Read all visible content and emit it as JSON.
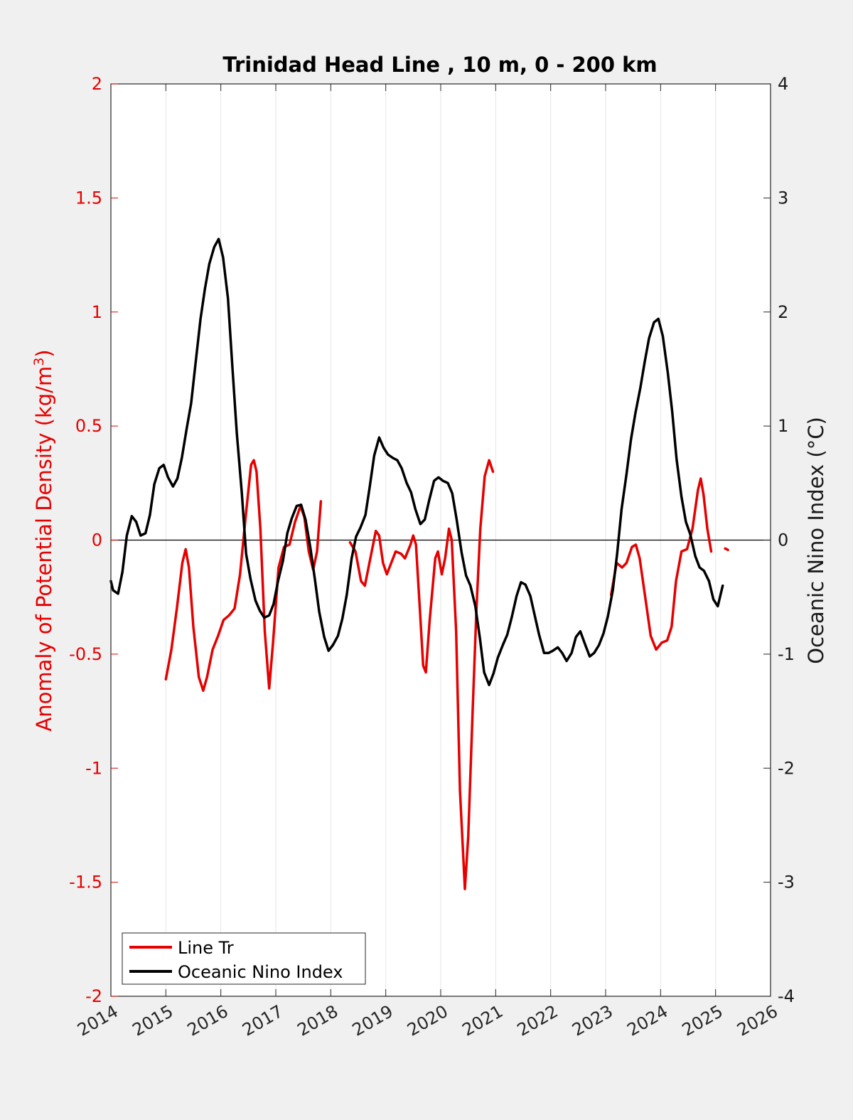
{
  "chart_data": {
    "type": "line",
    "title": "Trinidad Head Line , 10 m, 0 - 200 km",
    "xlabel": "",
    "ylabel_left": "Anomaly of Potential Density (kg/m",
    "ylabel_left_sup": "3",
    "ylabel_left_close": ")",
    "ylabel_right": "Oceanic Nino Index (°C)",
    "xlim": [
      2014,
      2026
    ],
    "ylim_left": [
      -2,
      2
    ],
    "ylim_right": [
      -4,
      4
    ],
    "x_ticks": [
      "2014",
      "2015",
      "2016",
      "2017",
      "2018",
      "2019",
      "2020",
      "2021",
      "2022",
      "2023",
      "2024",
      "2025",
      "2026"
    ],
    "y_left_ticks": [
      "2",
      "1.5",
      "1",
      "0.5",
      "0",
      "-0.5",
      "-1",
      "-1.5",
      "-2"
    ],
    "y_right_ticks": [
      "4",
      "3",
      "2",
      "1",
      "0",
      "-1",
      "-2",
      "-3",
      "-4"
    ],
    "grid": "vertical",
    "legend_position": "bottom-left",
    "colors": {
      "line_tr": "#e60000",
      "oni": "#000000"
    },
    "series": [
      {
        "name": "Line Tr",
        "axis": "left",
        "color": "#e60000",
        "segments": [
          [
            [
              2015.0,
              -0.61
            ],
            [
              2015.1,
              -0.48
            ],
            [
              2015.2,
              -0.3
            ],
            [
              2015.3,
              -0.1
            ],
            [
              2015.36,
              -0.04
            ],
            [
              2015.42,
              -0.12
            ],
            [
              2015.5,
              -0.38
            ],
            [
              2015.6,
              -0.6
            ],
            [
              2015.68,
              -0.66
            ],
            [
              2015.75,
              -0.6
            ],
            [
              2015.85,
              -0.48
            ],
            [
              2015.95,
              -0.42
            ],
            [
              2016.05,
              -0.35
            ],
            [
              2016.15,
              -0.33
            ],
            [
              2016.25,
              -0.3
            ],
            [
              2016.35,
              -0.15
            ],
            [
              2016.45,
              0.1
            ],
            [
              2016.55,
              0.33
            ],
            [
              2016.6,
              0.35
            ],
            [
              2016.65,
              0.3
            ],
            [
              2016.72,
              0.05
            ],
            [
              2016.8,
              -0.4
            ],
            [
              2016.88,
              -0.65
            ],
            [
              2016.95,
              -0.45
            ],
            [
              2017.05,
              -0.12
            ],
            [
              2017.15,
              -0.03
            ],
            [
              2017.25,
              -0.02
            ],
            [
              2017.35,
              0.08
            ],
            [
              2017.45,
              0.15
            ],
            [
              2017.52,
              0.1
            ],
            [
              2017.6,
              -0.05
            ],
            [
              2017.68,
              -0.13
            ],
            [
              2017.75,
              -0.05
            ],
            [
              2017.82,
              0.17
            ]
          ],
          [
            [
              2018.35,
              -0.01
            ],
            [
              2018.45,
              -0.05
            ],
            [
              2018.55,
              -0.18
            ],
            [
              2018.62,
              -0.2
            ],
            [
              2018.72,
              -0.08
            ],
            [
              2018.82,
              0.04
            ],
            [
              2018.88,
              0.02
            ],
            [
              2018.95,
              -0.1
            ],
            [
              2019.02,
              -0.15
            ],
            [
              2019.1,
              -0.1
            ],
            [
              2019.18,
              -0.05
            ],
            [
              2019.28,
              -0.06
            ],
            [
              2019.35,
              -0.08
            ],
            [
              2019.45,
              -0.02
            ],
            [
              2019.5,
              0.02
            ],
            [
              2019.55,
              -0.02
            ],
            [
              2019.62,
              -0.3
            ],
            [
              2019.68,
              -0.55
            ],
            [
              2019.73,
              -0.58
            ],
            [
              2019.8,
              -0.35
            ],
            [
              2019.9,
              -0.08
            ],
            [
              2019.95,
              -0.05
            ],
            [
              2020.02,
              -0.15
            ],
            [
              2020.08,
              -0.08
            ],
            [
              2020.15,
              0.05
            ],
            [
              2020.2,
              0.0
            ],
            [
              2020.28,
              -0.4
            ],
            [
              2020.35,
              -1.1
            ],
            [
              2020.44,
              -1.53
            ],
            [
              2020.5,
              -1.3
            ],
            [
              2020.58,
              -0.75
            ],
            [
              2020.65,
              -0.3
            ],
            [
              2020.72,
              0.05
            ],
            [
              2020.8,
              0.28
            ],
            [
              2020.88,
              0.35
            ],
            [
              2020.95,
              0.3
            ]
          ],
          [
            [
              2023.1,
              -0.24
            ],
            [
              2023.2,
              -0.1
            ],
            [
              2023.3,
              -0.12
            ],
            [
              2023.38,
              -0.1
            ],
            [
              2023.48,
              -0.03
            ],
            [
              2023.55,
              -0.02
            ],
            [
              2023.62,
              -0.08
            ],
            [
              2023.72,
              -0.25
            ],
            [
              2023.82,
              -0.42
            ],
            [
              2023.92,
              -0.48
            ],
            [
              2024.02,
              -0.45
            ],
            [
              2024.12,
              -0.44
            ],
            [
              2024.2,
              -0.38
            ],
            [
              2024.28,
              -0.18
            ],
            [
              2024.38,
              -0.05
            ],
            [
              2024.48,
              -0.04
            ],
            [
              2024.58,
              0.05
            ],
            [
              2024.68,
              0.22
            ],
            [
              2024.73,
              0.27
            ],
            [
              2024.78,
              0.2
            ],
            [
              2024.85,
              0.05
            ],
            [
              2024.92,
              -0.05
            ]
          ],
          [
            [
              2025.2,
              -0.04
            ]
          ]
        ]
      },
      {
        "name": "Oceanic Nino Index",
        "axis": "right",
        "color": "#000000",
        "segments": [
          [
            [
              2014.0,
              -0.36
            ],
            [
              2014.04,
              -0.44
            ],
            [
              2014.13,
              -0.47
            ],
            [
              2014.21,
              -0.28
            ],
            [
              2014.29,
              0.04
            ],
            [
              2014.38,
              0.21
            ],
            [
              2014.46,
              0.16
            ],
            [
              2014.54,
              0.04
            ],
            [
              2014.63,
              0.06
            ],
            [
              2014.71,
              0.22
            ],
            [
              2014.79,
              0.49
            ],
            [
              2014.88,
              0.63
            ],
            [
              2014.96,
              0.66
            ],
            [
              2015.04,
              0.55
            ],
            [
              2015.13,
              0.47
            ],
            [
              2015.21,
              0.54
            ],
            [
              2015.29,
              0.72
            ],
            [
              2015.38,
              0.98
            ],
            [
              2015.46,
              1.2
            ],
            [
              2015.54,
              1.55
            ],
            [
              2015.63,
              1.94
            ],
            [
              2015.71,
              2.2
            ],
            [
              2015.79,
              2.42
            ],
            [
              2015.88,
              2.57
            ],
            [
              2015.96,
              2.64
            ],
            [
              2016.04,
              2.48
            ],
            [
              2016.13,
              2.12
            ],
            [
              2016.21,
              1.52
            ],
            [
              2016.29,
              0.94
            ],
            [
              2016.38,
              0.42
            ],
            [
              2016.46,
              -0.12
            ],
            [
              2016.54,
              -0.34
            ],
            [
              2016.63,
              -0.53
            ],
            [
              2016.71,
              -0.62
            ],
            [
              2016.79,
              -0.68
            ],
            [
              2016.88,
              -0.66
            ],
            [
              2016.96,
              -0.56
            ],
            [
              2017.04,
              -0.36
            ],
            [
              2017.13,
              -0.18
            ],
            [
              2017.21,
              0.06
            ],
            [
              2017.29,
              0.19
            ],
            [
              2017.38,
              0.3
            ],
            [
              2017.46,
              0.31
            ],
            [
              2017.54,
              0.18
            ],
            [
              2017.63,
              -0.07
            ],
            [
              2017.71,
              -0.34
            ],
            [
              2017.79,
              -0.63
            ],
            [
              2017.88,
              -0.85
            ],
            [
              2017.96,
              -0.97
            ],
            [
              2018.04,
              -0.92
            ],
            [
              2018.13,
              -0.84
            ],
            [
              2018.21,
              -0.69
            ],
            [
              2018.29,
              -0.48
            ],
            [
              2018.38,
              -0.16
            ],
            [
              2018.46,
              0.03
            ],
            [
              2018.54,
              0.11
            ],
            [
              2018.63,
              0.22
            ],
            [
              2018.71,
              0.47
            ],
            [
              2018.79,
              0.74
            ],
            [
              2018.88,
              0.9
            ],
            [
              2018.96,
              0.81
            ],
            [
              2019.04,
              0.75
            ],
            [
              2019.13,
              0.72
            ],
            [
              2019.21,
              0.7
            ],
            [
              2019.29,
              0.63
            ],
            [
              2019.38,
              0.5
            ],
            [
              2019.46,
              0.42
            ],
            [
              2019.54,
              0.27
            ],
            [
              2019.63,
              0.14
            ],
            [
              2019.71,
              0.18
            ],
            [
              2019.79,
              0.35
            ],
            [
              2019.88,
              0.52
            ],
            [
              2019.96,
              0.55
            ],
            [
              2020.04,
              0.52
            ],
            [
              2020.13,
              0.5
            ],
            [
              2020.21,
              0.41
            ],
            [
              2020.29,
              0.18
            ],
            [
              2020.38,
              -0.11
            ],
            [
              2020.46,
              -0.31
            ],
            [
              2020.54,
              -0.4
            ],
            [
              2020.63,
              -0.58
            ],
            [
              2020.71,
              -0.85
            ],
            [
              2020.79,
              -1.16
            ],
            [
              2020.88,
              -1.27
            ],
            [
              2020.96,
              -1.17
            ],
            [
              2021.04,
              -1.03
            ],
            [
              2021.13,
              -0.92
            ],
            [
              2021.21,
              -0.83
            ],
            [
              2021.29,
              -0.68
            ],
            [
              2021.38,
              -0.49
            ],
            [
              2021.46,
              -0.37
            ],
            [
              2021.54,
              -0.39
            ],
            [
              2021.63,
              -0.49
            ],
            [
              2021.71,
              -0.66
            ],
            [
              2021.79,
              -0.83
            ],
            [
              2021.88,
              -0.99
            ],
            [
              2021.96,
              -0.99
            ],
            [
              2022.04,
              -0.97
            ],
            [
              2022.13,
              -0.94
            ],
            [
              2022.21,
              -0.99
            ],
            [
              2022.29,
              -1.06
            ],
            [
              2022.38,
              -0.99
            ],
            [
              2022.46,
              -0.85
            ],
            [
              2022.54,
              -0.8
            ],
            [
              2022.63,
              -0.92
            ],
            [
              2022.71,
              -1.02
            ],
            [
              2022.79,
              -0.99
            ],
            [
              2022.88,
              -0.92
            ],
            [
              2022.96,
              -0.82
            ],
            [
              2023.04,
              -0.67
            ],
            [
              2023.13,
              -0.44
            ],
            [
              2023.21,
              -0.12
            ],
            [
              2023.29,
              0.27
            ],
            [
              2023.38,
              0.58
            ],
            [
              2023.46,
              0.88
            ],
            [
              2023.54,
              1.11
            ],
            [
              2023.63,
              1.33
            ],
            [
              2023.71,
              1.56
            ],
            [
              2023.79,
              1.77
            ],
            [
              2023.88,
              1.91
            ],
            [
              2023.96,
              1.94
            ],
            [
              2024.04,
              1.79
            ],
            [
              2024.13,
              1.47
            ],
            [
              2024.21,
              1.13
            ],
            [
              2024.29,
              0.71
            ],
            [
              2024.38,
              0.38
            ],
            [
              2024.46,
              0.16
            ],
            [
              2024.54,
              0.05
            ],
            [
              2024.63,
              -0.14
            ],
            [
              2024.71,
              -0.24
            ],
            [
              2024.79,
              -0.27
            ],
            [
              2024.88,
              -0.36
            ],
            [
              2024.96,
              -0.52
            ],
            [
              2025.04,
              -0.58
            ],
            [
              2025.13,
              -0.4
            ]
          ]
        ]
      }
    ]
  }
}
